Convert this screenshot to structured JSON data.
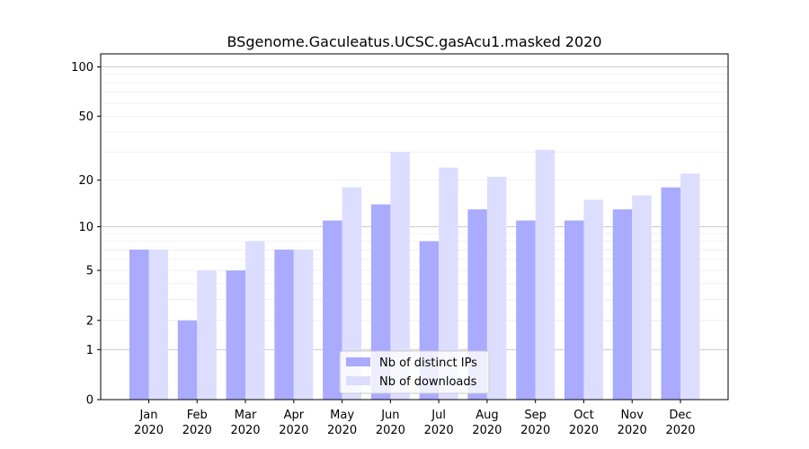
{
  "chart_data": {
    "type": "bar",
    "title": "BSgenome.Gaculeatus.UCSC.gasAcu1.masked 2020",
    "xlabel": "",
    "ylabel": "",
    "y_scale": "log(1+y)",
    "ylim": [
      0,
      120
    ],
    "y_ticks": [
      "0",
      "1",
      "2",
      "5",
      "10",
      "20",
      "50",
      "100"
    ],
    "y_tick_values": [
      0,
      1,
      2,
      5,
      10,
      20,
      50,
      100
    ],
    "grid": true,
    "legend_position": "bottom-center",
    "categories": [
      {
        "month": "Jan",
        "year": "2020"
      },
      {
        "month": "Feb",
        "year": "2020"
      },
      {
        "month": "Mar",
        "year": "2020"
      },
      {
        "month": "Apr",
        "year": "2020"
      },
      {
        "month": "May",
        "year": "2020"
      },
      {
        "month": "Jun",
        "year": "2020"
      },
      {
        "month": "Jul",
        "year": "2020"
      },
      {
        "month": "Aug",
        "year": "2020"
      },
      {
        "month": "Sep",
        "year": "2020"
      },
      {
        "month": "Oct",
        "year": "2020"
      },
      {
        "month": "Nov",
        "year": "2020"
      },
      {
        "month": "Dec",
        "year": "2020"
      }
    ],
    "series": [
      {
        "name": "Nb of distinct IPs",
        "color": "#aaaaff",
        "values": [
          7,
          2,
          5,
          7,
          11,
          14,
          8,
          13,
          11,
          11,
          13,
          18
        ]
      },
      {
        "name": "Nb of downloads",
        "color": "#ddddff",
        "values": [
          7,
          5,
          8,
          7,
          18,
          30,
          24,
          21,
          31,
          15,
          16,
          22
        ]
      }
    ]
  }
}
